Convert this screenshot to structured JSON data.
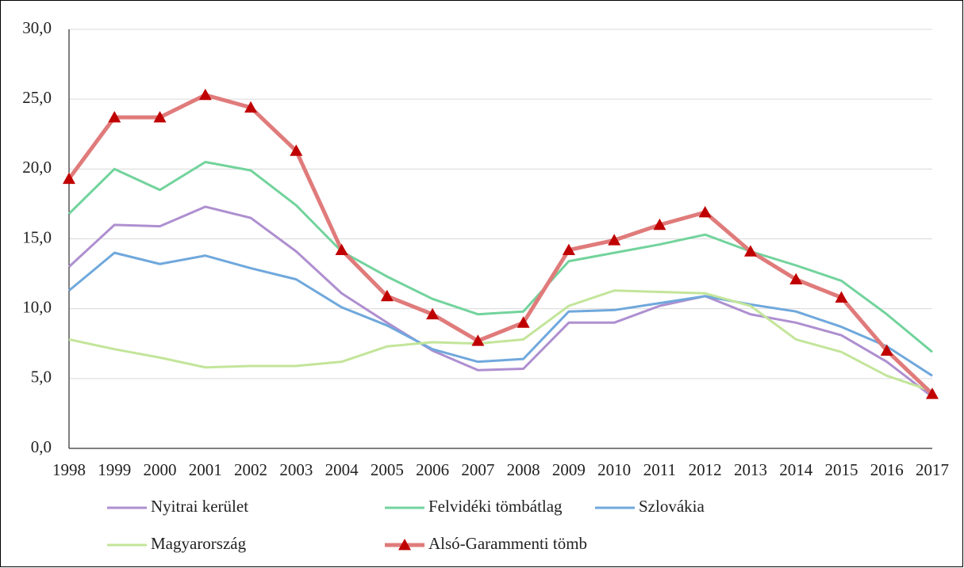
{
  "chart_data": {
    "type": "line",
    "categories": [
      "1998",
      "1999",
      "2000",
      "2001",
      "2002",
      "2003",
      "2004",
      "2005",
      "2006",
      "2007",
      "2008",
      "2009",
      "2010",
      "2011",
      "2012",
      "2013",
      "2014",
      "2015",
      "2016",
      "2017"
    ],
    "ylim": [
      0,
      30
    ],
    "yticks": [
      {
        "value": 0,
        "label": "0,0"
      },
      {
        "value": 5,
        "label": "5,0"
      },
      {
        "value": 10,
        "label": "10,0"
      },
      {
        "value": 15,
        "label": "15,0"
      },
      {
        "value": 20,
        "label": "20,0"
      },
      {
        "value": 25,
        "label": "25,0"
      },
      {
        "value": 30,
        "label": "30,0"
      }
    ],
    "grid": true,
    "series": [
      {
        "name": "Nyitrai kerület",
        "color": "#ae8fd0",
        "values": [
          13.0,
          16.0,
          15.9,
          17.3,
          16.5,
          14.1,
          11.1,
          9.0,
          7.0,
          5.6,
          5.7,
          9.0,
          9.0,
          10.2,
          10.9,
          9.6,
          9.0,
          8.1,
          6.2,
          3.7
        ]
      },
      {
        "name": "Felvidéki tömbátlag",
        "color": "#72d39c",
        "values": [
          16.8,
          20.0,
          18.5,
          20.5,
          19.9,
          17.4,
          14.1,
          12.3,
          10.7,
          9.6,
          9.8,
          13.4,
          14.0,
          14.6,
          15.3,
          14.1,
          13.1,
          12.0,
          9.6,
          6.9
        ]
      },
      {
        "name": "Szlovákia",
        "color": "#6fa8dc",
        "values": [
          11.3,
          14.0,
          13.2,
          13.8,
          12.9,
          12.1,
          10.1,
          8.8,
          7.1,
          6.2,
          6.4,
          9.8,
          9.9,
          10.4,
          10.9,
          10.3,
          9.8,
          8.7,
          7.3,
          5.2
        ]
      },
      {
        "name": "Magyarország",
        "color": "#c3e59a",
        "values": [
          7.8,
          7.1,
          6.5,
          5.8,
          5.9,
          5.9,
          6.2,
          7.3,
          7.6,
          7.5,
          7.8,
          10.2,
          11.3,
          11.2,
          11.1,
          10.2,
          7.8,
          6.9,
          5.2,
          4.1
        ]
      },
      {
        "name": "Alsó-Garammenti  tömb",
        "color": "#e07b7b",
        "marker": "triangle",
        "marker_color": "#c00000",
        "values": [
          19.3,
          23.7,
          23.7,
          25.3,
          24.4,
          21.3,
          14.2,
          10.9,
          9.6,
          7.7,
          9.0,
          14.2,
          14.9,
          16.0,
          16.9,
          14.1,
          12.1,
          10.8,
          7.0,
          3.9
        ]
      }
    ]
  }
}
